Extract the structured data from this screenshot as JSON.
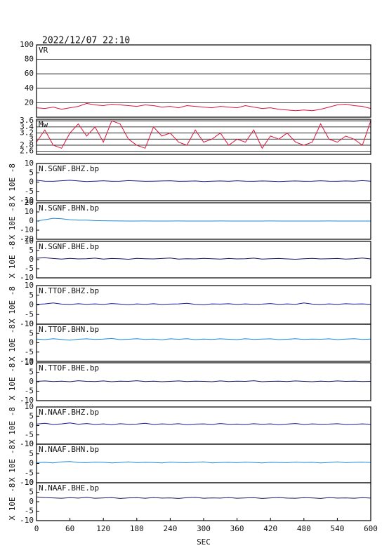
{
  "chart_data": {
    "type": "line",
    "title": "2022/12/07 22:10",
    "xlabel": "SEC",
    "xlim": [
      0,
      600
    ],
    "xticks": [
      0,
      60,
      120,
      180,
      240,
      300,
      360,
      420,
      480,
      540,
      600
    ],
    "x": [
      0,
      15,
      30,
      45,
      60,
      75,
      90,
      105,
      120,
      135,
      150,
      165,
      180,
      195,
      210,
      225,
      240,
      255,
      270,
      285,
      300,
      315,
      330,
      345,
      360,
      375,
      390,
      405,
      420,
      435,
      450,
      465,
      480,
      495,
      510,
      525,
      540,
      555,
      570,
      585,
      600
    ],
    "panels": [
      {
        "name": "VR",
        "color": "#dc143c",
        "ylim": [
          0,
          100
        ],
        "yticks": [
          20,
          40,
          60,
          80,
          100
        ],
        "grid": true,
        "values": [
          13,
          12,
          14,
          11,
          13,
          15,
          19,
          17,
          16,
          18,
          17,
          16,
          15,
          17,
          16,
          14,
          15,
          13,
          16,
          15,
          14,
          13,
          15,
          14,
          13,
          16,
          14,
          12,
          13,
          11,
          10,
          9,
          10,
          9,
          11,
          14,
          17,
          18,
          16,
          15,
          12
        ]
      },
      {
        "name": "Mw",
        "color": "#dc143c",
        "ylim": [
          2.5,
          3.65
        ],
        "yticks": [
          2.6,
          2.8,
          3,
          3.2,
          3.4,
          3.6
        ],
        "grid": true,
        "values": [
          2.9,
          3.3,
          2.8,
          2.7,
          3.2,
          3.5,
          3.1,
          3.4,
          2.9,
          3.6,
          3.5,
          3.0,
          2.8,
          2.7,
          3.4,
          3.1,
          3.2,
          2.9,
          2.8,
          3.3,
          2.9,
          3.0,
          3.2,
          2.8,
          3.0,
          2.9,
          3.3,
          2.7,
          3.1,
          3.0,
          3.2,
          2.9,
          2.8,
          2.9,
          3.5,
          3.0,
          2.9,
          3.1,
          3.0,
          2.8,
          3.6
        ]
      },
      {
        "name": "N.SGNF.BHZ.bp",
        "ylabel": "X 10E -8",
        "color": "#1a1a9a",
        "ylim": [
          -10,
          10
        ],
        "yticks": [
          -10,
          -5,
          0,
          5,
          10
        ],
        "grid": false,
        "values": [
          1,
          0.5,
          0.4,
          0.7,
          1,
          0.6,
          0.3,
          0.5,
          0.7,
          0.4,
          0.5,
          0.8,
          0.6,
          0.4,
          0.5,
          0.6,
          0.7,
          0.4,
          0.5,
          0.6,
          0.3,
          0.5,
          0.6,
          0.4,
          0.7,
          0.5,
          0.4,
          0.6,
          0.5,
          0.3,
          0.5,
          0.6,
          0.4,
          0.5,
          0.7,
          0.5,
          0.4,
          0.6,
          0.5,
          0.8,
          0.5
        ]
      },
      {
        "name": "N.SGNF.BHN.bp",
        "ylabel": "X 10E -8",
        "color": "#1e88d8",
        "ylim": [
          -20,
          20
        ],
        "yticks": [
          -20,
          -10,
          0,
          10,
          20
        ],
        "grid": false,
        "values": [
          0,
          1.5,
          3,
          2.5,
          1.5,
          1,
          1,
          0.5,
          0.3,
          0.2,
          0.1,
          0,
          0,
          0.1,
          0,
          0,
          0,
          0.1,
          0,
          0,
          0,
          0,
          0.1,
          0,
          0,
          0,
          0,
          0,
          0.1,
          0,
          0,
          0,
          0,
          0,
          0,
          0.1,
          0,
          0,
          0,
          0,
          0
        ]
      },
      {
        "name": "N.SGNF.BHE.bp",
        "ylabel": "X 10E -8",
        "color": "#141466",
        "ylim": [
          -10,
          10
        ],
        "yticks": [
          -10,
          -5,
          0,
          5,
          10
        ],
        "grid": false,
        "values": [
          0.8,
          1,
          0.6,
          0.3,
          0.7,
          0.4,
          0.5,
          0.8,
          0.3,
          0.6,
          0.5,
          0.2,
          0.7,
          0.5,
          0.4,
          0.6,
          0.9,
          0.3,
          0.5,
          0.4,
          0.7,
          0.5,
          0.3,
          0.6,
          0.4,
          0.5,
          0.8,
          0.3,
          0.5,
          0.6,
          0.4,
          0.2,
          0.5,
          0.7,
          0.4,
          0.5,
          0.6,
          0.3,
          0.5,
          0.9,
          0.4
        ]
      },
      {
        "name": "N.TTOF.BHZ.bp",
        "ylabel": "X 10E -8",
        "color": "#1a1a9a",
        "ylim": [
          -10,
          10
        ],
        "yticks": [
          -10,
          -5,
          0,
          5,
          10
        ],
        "grid": false,
        "values": [
          0.3,
          0.5,
          1,
          0.4,
          0.2,
          0.6,
          0.3,
          0.5,
          0.2,
          0.7,
          0.4,
          0.1,
          0.5,
          0.3,
          0.6,
          0.2,
          0.4,
          0.5,
          0.8,
          0.3,
          0.1,
          0.5,
          0.4,
          0.6,
          0.2,
          0.5,
          0.3,
          0.4,
          0.7,
          0.2,
          0.5,
          0.3,
          1,
          0.4,
          0.2,
          0.5,
          0.3,
          0.6,
          0.4,
          0.5,
          0.3
        ]
      },
      {
        "name": "N.TTOF.BHN.bp",
        "ylabel": "X 10E -8",
        "color": "#1e88d8",
        "ylim": [
          -10,
          10
        ],
        "yticks": [
          -10,
          -5,
          0,
          5,
          10
        ],
        "grid": false,
        "values": [
          2,
          1.7,
          2.2,
          1.8,
          1.4,
          1.9,
          2.1,
          1.8,
          2,
          2.3,
          1.7,
          1.9,
          2.2,
          1.8,
          2,
          1.6,
          2.1,
          1.9,
          2.2,
          1.7,
          2,
          1.8,
          2.1,
          1.9,
          1.7,
          2.2,
          1.8,
          2,
          2.1,
          1.7,
          1.9,
          2.2,
          1.8,
          2,
          1.9,
          2.1,
          1.7,
          2,
          2.2,
          1.8,
          2
        ]
      },
      {
        "name": "N.TTOF.BHE.bp",
        "ylabel": "X 10E -8",
        "color": "#141466",
        "ylim": [
          -10,
          10
        ],
        "yticks": [
          -10,
          -5,
          0,
          5,
          10
        ],
        "grid": false,
        "values": [
          0.2,
          0.4,
          0.1,
          0.3,
          0,
          0.5,
          0.2,
          0.1,
          0.4,
          0,
          0.3,
          0.2,
          0.5,
          0.1,
          0.3,
          0,
          0.2,
          0.4,
          0.1,
          0.3,
          0.2,
          0,
          0.4,
          0.1,
          0.3,
          0.2,
          0.5,
          0,
          0.2,
          0.3,
          0.1,
          0.4,
          0.2,
          0,
          0.3,
          0.1,
          0.4,
          0.2,
          0.3,
          0.1,
          0.2
        ]
      },
      {
        "name": "N.NAAF.BHZ.bp",
        "ylabel": "X 10E -8",
        "color": "#1a1a9a",
        "ylim": [
          -10,
          10
        ],
        "yticks": [
          -10,
          -5,
          0,
          5,
          10
        ],
        "grid": false,
        "values": [
          0.8,
          1.2,
          0.6,
          0.9,
          1.4,
          0.7,
          1.1,
          0.6,
          0.9,
          0.5,
          1,
          0.7,
          0.8,
          1.2,
          0.6,
          0.9,
          0.7,
          1,
          0.5,
          0.8,
          0.9,
          0.6,
          1.1,
          0.7,
          0.8,
          0.6,
          1,
          0.7,
          0.9,
          0.5,
          0.8,
          1.1,
          0.6,
          0.9,
          0.7,
          0.8,
          1,
          0.6,
          0.7,
          0.9,
          0.7
        ]
      },
      {
        "name": "N.NAAF.BHN.bp",
        "ylabel": "X 10E -8",
        "color": "#1e88d8",
        "ylim": [
          -10,
          10
        ],
        "yticks": [
          -10,
          -5,
          0,
          5,
          10
        ],
        "grid": false,
        "values": [
          0.4,
          0.6,
          0.3,
          0.8,
          1,
          0.5,
          0.4,
          0.7,
          0.6,
          0.3,
          0.5,
          0.8,
          0.4,
          0.6,
          0.5,
          0.3,
          0.7,
          0.5,
          0.4,
          0.6,
          0.8,
          0.3,
          0.5,
          0.6,
          0.4,
          0.7,
          0.5,
          0.3,
          0.6,
          0.5,
          0.4,
          0.7,
          0.5,
          0.6,
          0.3,
          0.5,
          0.8,
          0.4,
          0.6,
          0.7,
          0.5
        ]
      },
      {
        "name": "N.NAAF.BHE.bp",
        "ylabel": "X 10E -8",
        "color": "#141466",
        "ylim": [
          -10,
          10
        ],
        "yticks": [
          -10,
          -5,
          0,
          5,
          10
        ],
        "grid": false,
        "values": [
          2.5,
          2.2,
          2,
          1.8,
          2.1,
          1.9,
          2.3,
          1.8,
          2,
          2.2,
          1.7,
          2,
          2.1,
          1.8,
          2.2,
          1.9,
          2,
          1.7,
          2.1,
          2.3,
          1.8,
          2,
          1.9,
          2.2,
          1.8,
          2,
          2.1,
          1.7,
          2,
          2.2,
          1.9,
          1.8,
          2.1,
          2,
          1.7,
          2.2,
          1.9,
          2,
          1.8,
          2.1,
          1.9
        ]
      }
    ]
  }
}
